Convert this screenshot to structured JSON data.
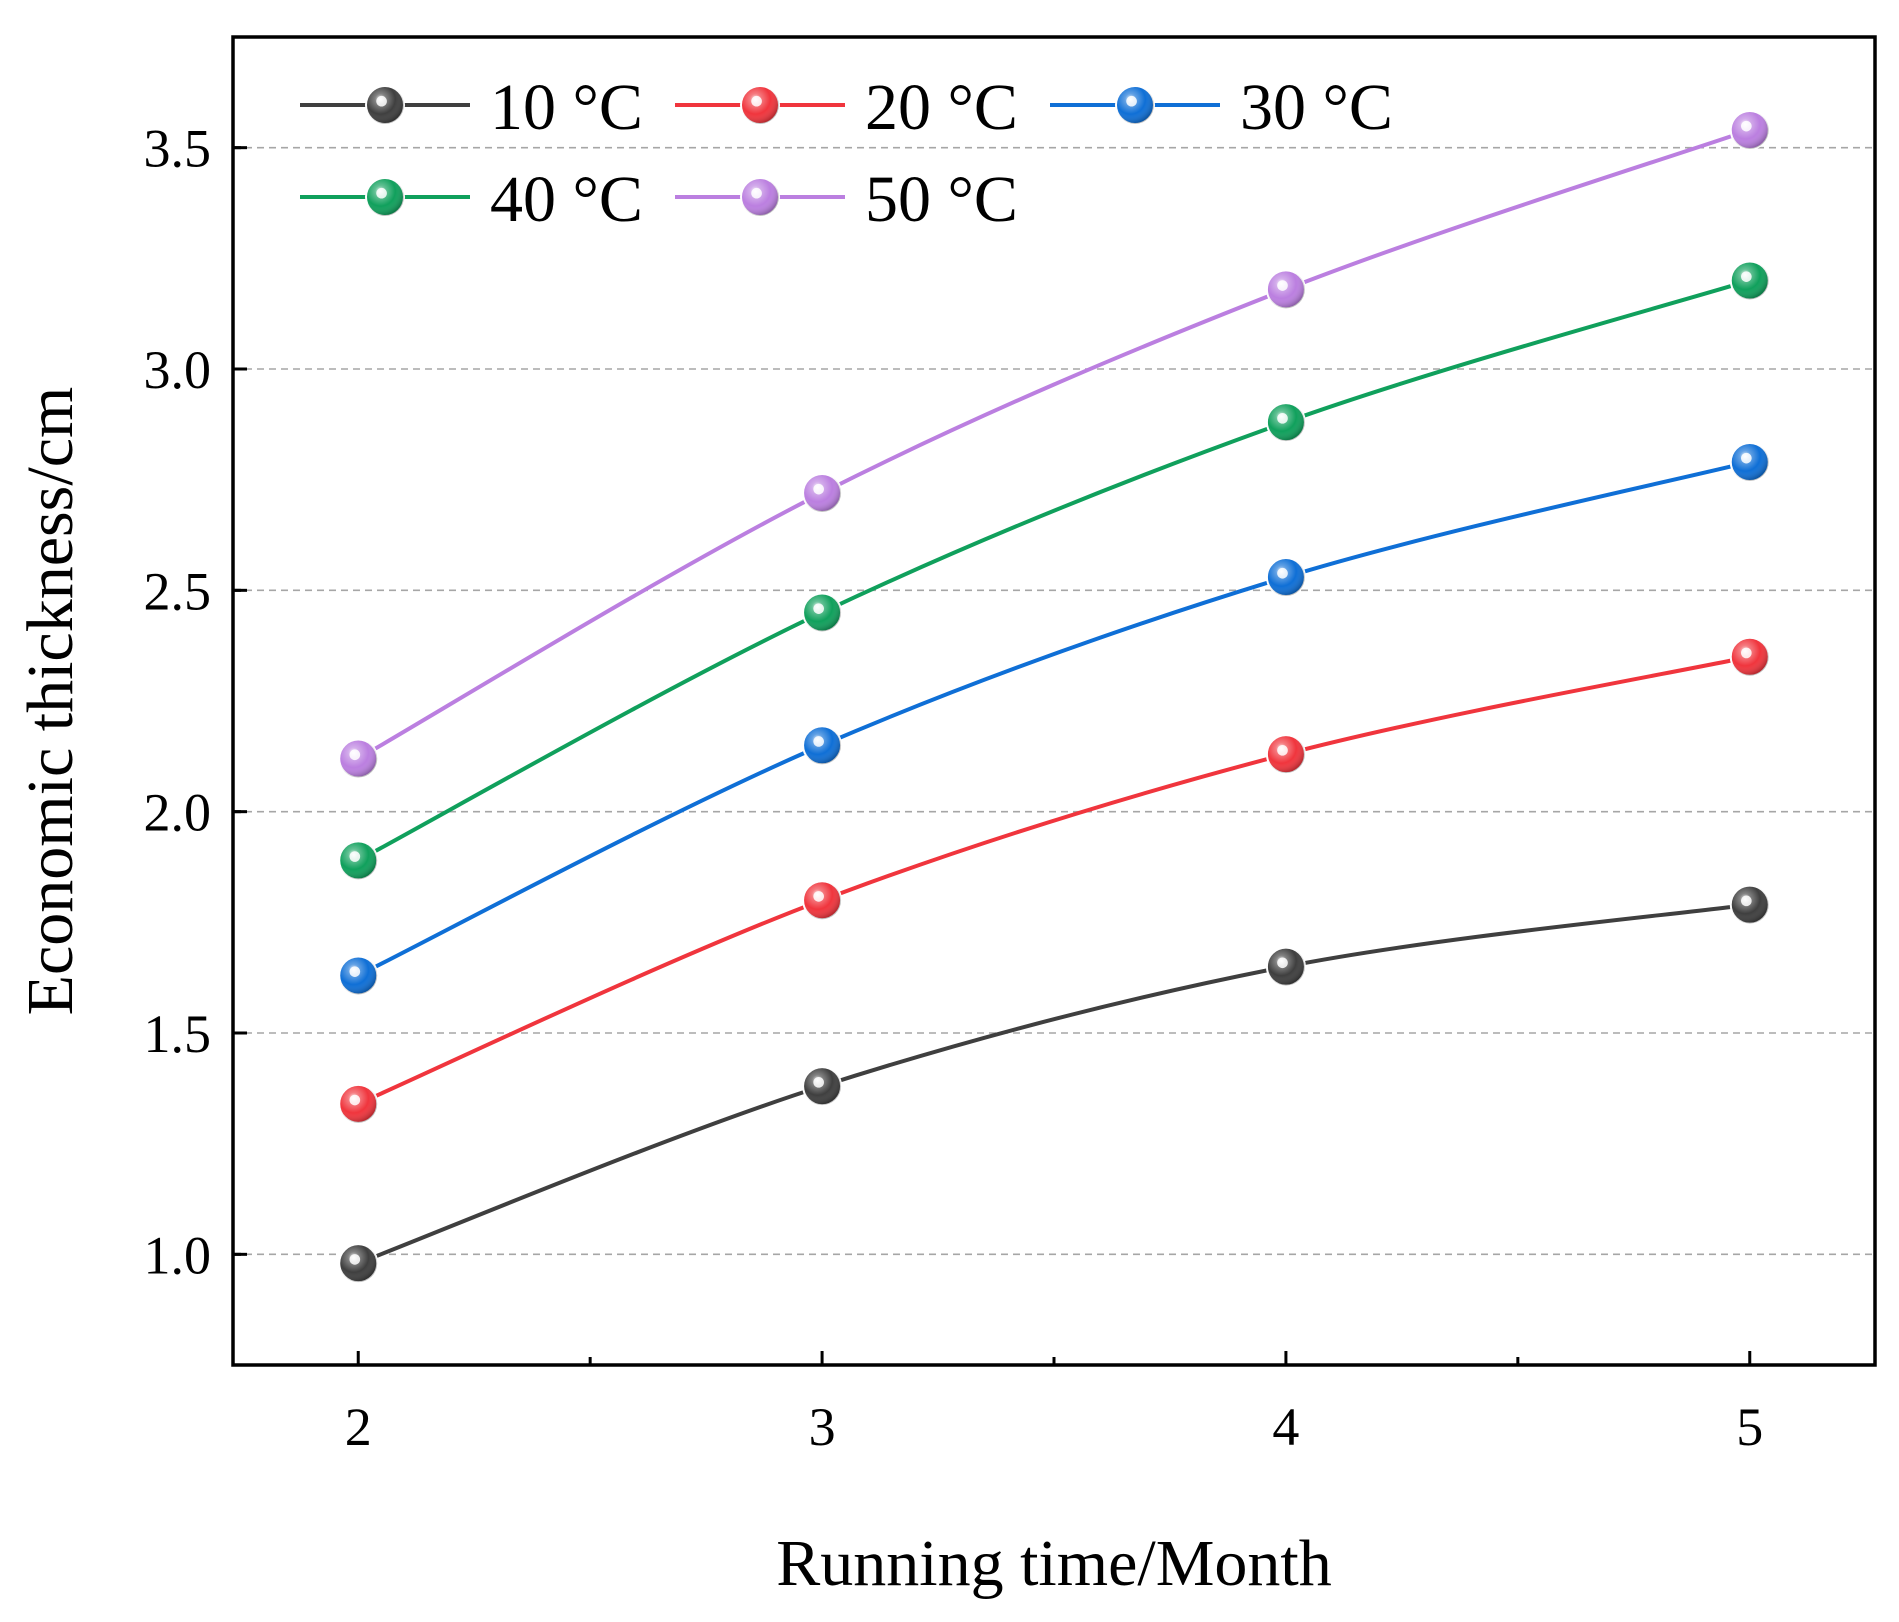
{
  "chart_data": {
    "type": "line",
    "title": "",
    "xlabel": "Running time/Month",
    "ylabel": "Economic thickness/cm",
    "x": [
      2,
      3,
      4,
      5
    ],
    "xlim": [
      1.73,
      5.27
    ],
    "ylim": [
      0.75,
      3.75
    ],
    "x_ticks": [
      "2",
      "3",
      "4",
      "5"
    ],
    "y_ticks": [
      "1.0",
      "1.5",
      "2.0",
      "2.5",
      "3.0",
      "3.5"
    ],
    "gridlines": "horizontal dashed",
    "legend_position": "top-left",
    "series": [
      {
        "name": "10 °C",
        "color": "#3f3f3f",
        "values": [
          0.98,
          1.38,
          1.65,
          1.79
        ]
      },
      {
        "name": "20 °C",
        "color": "#f0353d",
        "values": [
          1.34,
          1.8,
          2.13,
          2.35
        ]
      },
      {
        "name": "30 °C",
        "color": "#0f6fd6",
        "values": [
          1.63,
          2.15,
          2.53,
          2.79
        ]
      },
      {
        "name": "40 °C",
        "color": "#10a05c",
        "values": [
          1.89,
          2.45,
          2.88,
          3.2
        ]
      },
      {
        "name": "50 °C",
        "color": "#bb7fe0",
        "values": [
          2.12,
          2.72,
          3.18,
          3.54
        ]
      }
    ]
  }
}
